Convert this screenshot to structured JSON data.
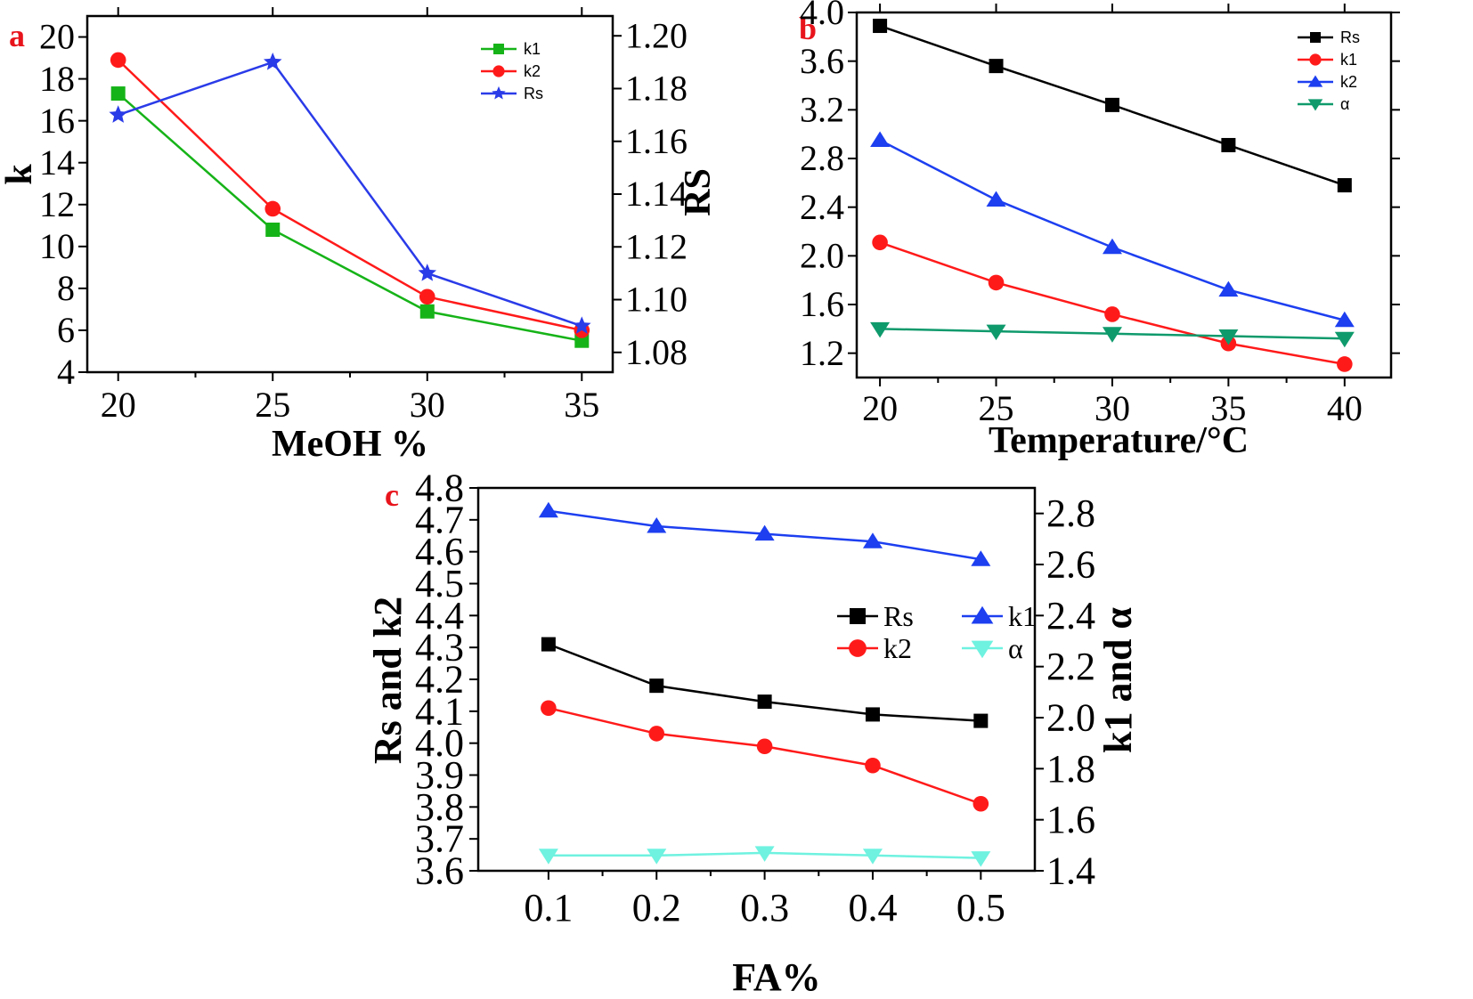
{
  "chart_data": [
    {
      "type": "line",
      "panel": "a",
      "xlabel": "MeOH %",
      "ylabel": "k",
      "ylabel_right": "RS",
      "x": [
        20,
        25,
        30,
        35
      ],
      "xlim": [
        19,
        36
      ],
      "xticks": [
        "20",
        "25",
        "30",
        "35"
      ],
      "ylim": [
        4,
        21
      ],
      "yticks": [
        "4",
        "6",
        "8",
        "10",
        "12",
        "14",
        "16",
        "18",
        "20"
      ],
      "y2lim": [
        1.0725,
        1.2075
      ],
      "y2ticks": [
        "1.08",
        "1.10",
        "1.12",
        "1.14",
        "1.16",
        "1.18",
        "1.20"
      ],
      "legend_position": "top-right",
      "series": [
        {
          "name": "k1",
          "axis": "left",
          "marker": "square",
          "color": "#16b318",
          "values": [
            17.3,
            10.8,
            6.9,
            5.5
          ]
        },
        {
          "name": "k2",
          "axis": "left",
          "marker": "circle",
          "color": "#ff1a1a",
          "values": [
            18.9,
            11.8,
            7.6,
            6.0
          ]
        },
        {
          "name": "Rs",
          "axis": "right",
          "marker": "star",
          "color": "#2a3be8",
          "values": [
            1.17,
            1.19,
            1.11,
            1.09
          ]
        }
      ]
    },
    {
      "type": "line",
      "panel": "b",
      "xlabel": "Temperature/°C",
      "ylabel": "",
      "x": [
        20,
        25,
        30,
        35,
        40
      ],
      "xlim": [
        19,
        42
      ],
      "xticks": [
        "20",
        "25",
        "30",
        "35",
        "40"
      ],
      "ylim": [
        1.0,
        4.0
      ],
      "yticks": [
        "1.2",
        "1.6",
        "2.0",
        "2.4",
        "2.8",
        "3.2",
        "3.6",
        "4.0"
      ],
      "legend_position": "top-right",
      "series": [
        {
          "name": "Rs",
          "marker": "square",
          "color": "#000000",
          "values": [
            3.89,
            3.56,
            3.24,
            2.91,
            2.58
          ]
        },
        {
          "name": "k1",
          "marker": "circle",
          "color": "#ff1a1a",
          "values": [
            2.11,
            1.78,
            1.52,
            1.28,
            1.11
          ]
        },
        {
          "name": "k2",
          "marker": "triangle-up",
          "color": "#1d3ff0",
          "values": [
            2.95,
            2.46,
            2.07,
            1.72,
            1.47
          ]
        },
        {
          "name": "α",
          "marker": "triangle-down",
          "color": "#0f9a6c",
          "values": [
            1.4,
            1.38,
            1.36,
            1.34,
            1.32
          ]
        }
      ]
    },
    {
      "type": "line",
      "panel": "c",
      "xlabel": "FA%",
      "ylabel": "Rs and k2",
      "ylabel_right": "k1 and α",
      "x": [
        0.1,
        0.2,
        0.3,
        0.4,
        0.5
      ],
      "xlim": [
        0.035,
        0.55
      ],
      "xticks": [
        "0.1",
        "0.2",
        "0.3",
        "0.4",
        "0.5"
      ],
      "ylim": [
        3.6,
        4.8
      ],
      "yticks": [
        "3.6",
        "3.7",
        "3.8",
        "3.9",
        "4.0",
        "4.1",
        "4.2",
        "4.3",
        "4.4",
        "4.5",
        "4.6",
        "4.7",
        "4.8"
      ],
      "y2lim": [
        1.4,
        2.9
      ],
      "y2ticks": [
        "1.4",
        "1.6",
        "1.8",
        "2.0",
        "2.2",
        "2.4",
        "2.6",
        "2.8"
      ],
      "legend_position": "center-right",
      "series": [
        {
          "name": "Rs",
          "axis": "left",
          "marker": "square",
          "color": "#000000",
          "values": [
            4.31,
            4.18,
            4.13,
            4.09,
            4.07
          ]
        },
        {
          "name": "k1",
          "axis": "right",
          "marker": "triangle-up",
          "color": "#1d3ff0",
          "values": [
            2.81,
            2.75,
            2.72,
            2.69,
            2.62
          ]
        },
        {
          "name": "k2",
          "axis": "left",
          "marker": "circle",
          "color": "#ff1a1a",
          "values": [
            4.11,
            4.03,
            3.99,
            3.93,
            3.81
          ]
        },
        {
          "name": "α",
          "axis": "right",
          "marker": "triangle-down",
          "color": "#6ff2e0",
          "values": [
            1.46,
            1.46,
            1.47,
            1.46,
            1.45
          ]
        }
      ]
    }
  ]
}
